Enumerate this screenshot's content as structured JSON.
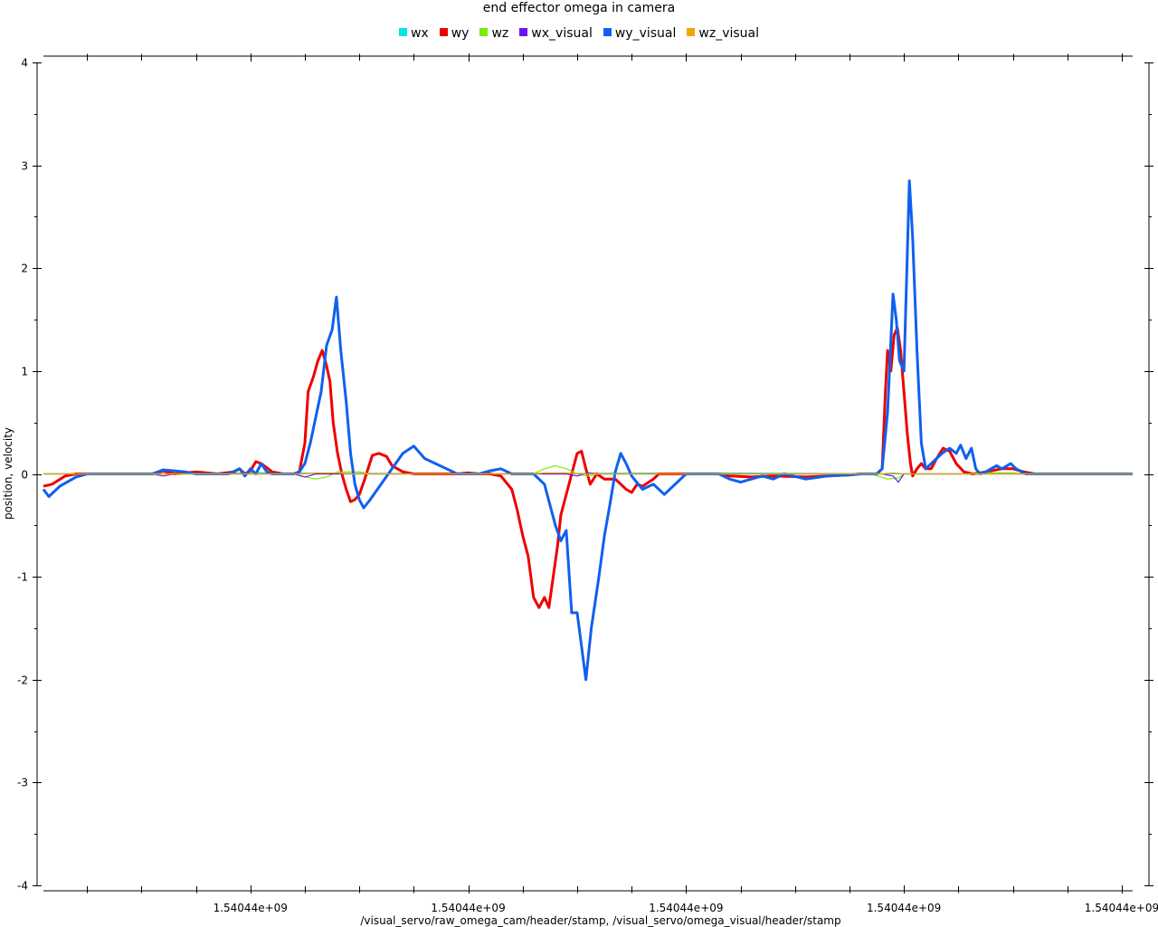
{
  "chart_data": {
    "type": "line",
    "title": "end effector omega in camera",
    "xlabel": "/visual_servo/raw_omega_cam/header/stamp, /visual_servo/omega_visual/header/stamp",
    "ylabel": "position, velocity",
    "ylim": [
      -4,
      4
    ],
    "yticks": [
      -4,
      -3,
      -2,
      -1,
      0,
      1,
      2,
      3,
      4
    ],
    "xlim": [
      0,
      100
    ],
    "xticks": [
      19.0,
      39.0,
      59.0,
      79.0,
      99.0
    ],
    "xtick_labels": [
      "1.54044e+09",
      "1.54044e+09",
      "1.54044e+09",
      "1.54044e+09",
      "1.54044e+09"
    ],
    "legend_position": "top-center",
    "grid": false,
    "series": [
      {
        "name": "wx",
        "color": "#00e5ee",
        "points": [
          [
            0,
            0
          ],
          [
            20,
            0.01
          ],
          [
            40,
            0
          ],
          [
            60,
            0.01
          ],
          [
            80,
            0
          ],
          [
            100,
            0
          ]
        ]
      },
      {
        "name": "wy",
        "color": "#ee0000",
        "points": [
          [
            0,
            -0.12
          ],
          [
            0.8,
            -0.1
          ],
          [
            2,
            -0.02
          ],
          [
            3,
            0
          ],
          [
            10,
            0
          ],
          [
            11,
            0.03
          ],
          [
            12,
            0
          ],
          [
            14,
            0.02
          ],
          [
            16,
            0
          ],
          [
            17.5,
            0.02
          ],
          [
            18,
            0.05
          ],
          [
            18.5,
            0
          ],
          [
            19,
            0.03
          ],
          [
            19.5,
            0.12
          ],
          [
            20,
            0.1
          ],
          [
            21,
            0.02
          ],
          [
            22,
            0
          ],
          [
            23,
            0
          ],
          [
            23.5,
            0.02
          ],
          [
            24,
            0.3
          ],
          [
            24.3,
            0.8
          ],
          [
            24.8,
            0.95
          ],
          [
            25.2,
            1.1
          ],
          [
            25.6,
            1.2
          ],
          [
            26,
            1.05
          ],
          [
            26.3,
            0.9
          ],
          [
            26.6,
            0.5
          ],
          [
            27,
            0.2
          ],
          [
            27.4,
            0
          ],
          [
            27.8,
            -0.15
          ],
          [
            28.2,
            -0.27
          ],
          [
            28.6,
            -0.25
          ],
          [
            29,
            -0.2
          ],
          [
            29.5,
            -0.05
          ],
          [
            29.8,
            0.05
          ],
          [
            30.2,
            0.18
          ],
          [
            30.8,
            0.2
          ],
          [
            31.5,
            0.17
          ],
          [
            32,
            0.08
          ],
          [
            33,
            0.02
          ],
          [
            34,
            0
          ],
          [
            38,
            0
          ],
          [
            39,
            0.01
          ],
          [
            40,
            0
          ],
          [
            41,
            0
          ],
          [
            42,
            -0.02
          ],
          [
            43,
            -0.15
          ],
          [
            43.5,
            -0.35
          ],
          [
            44,
            -0.6
          ],
          [
            44.5,
            -0.8
          ],
          [
            45,
            -1.2
          ],
          [
            45.5,
            -1.3
          ],
          [
            46,
            -1.2
          ],
          [
            46.4,
            -1.3
          ],
          [
            46.8,
            -1.0
          ],
          [
            47.2,
            -0.7
          ],
          [
            47.5,
            -0.4
          ],
          [
            48,
            -0.2
          ],
          [
            48.5,
            0
          ],
          [
            49,
            0.2
          ],
          [
            49.4,
            0.22
          ],
          [
            49.8,
            0.05
          ],
          [
            50.2,
            -0.1
          ],
          [
            50.8,
            0
          ],
          [
            51.5,
            -0.05
          ],
          [
            52.5,
            -0.05
          ],
          [
            53.5,
            -0.15
          ],
          [
            54,
            -0.18
          ],
          [
            54.5,
            -0.1
          ],
          [
            55,
            -0.12
          ],
          [
            56,
            -0.05
          ],
          [
            56.5,
            0
          ],
          [
            62,
            0
          ],
          [
            63,
            -0.02
          ],
          [
            65,
            -0.03
          ],
          [
            67,
            -0.02
          ],
          [
            70,
            -0.03
          ],
          [
            72,
            -0.02
          ],
          [
            74,
            -0.01
          ],
          [
            75,
            0
          ],
          [
            76.5,
            0
          ],
          [
            77,
            0.05
          ],
          [
            77.3,
            0.8
          ],
          [
            77.5,
            1.2
          ],
          [
            77.8,
            1.0
          ],
          [
            78.1,
            1.35
          ],
          [
            78.4,
            1.42
          ],
          [
            78.7,
            1.2
          ],
          [
            79,
            0.8
          ],
          [
            79.3,
            0.4
          ],
          [
            79.6,
            0.1
          ],
          [
            79.8,
            -0.02
          ],
          [
            80.2,
            0.05
          ],
          [
            80.6,
            0.1
          ],
          [
            81,
            0.05
          ],
          [
            81.5,
            0.05
          ],
          [
            82,
            0.15
          ],
          [
            82.6,
            0.25
          ],
          [
            83.2,
            0.22
          ],
          [
            83.8,
            0.1
          ],
          [
            84.5,
            0.02
          ],
          [
            85.3,
            0
          ],
          [
            86,
            0.01
          ],
          [
            87,
            0.03
          ],
          [
            88,
            0.05
          ],
          [
            89,
            0.05
          ],
          [
            90,
            0.02
          ],
          [
            91,
            0
          ],
          [
            100,
            0
          ]
        ]
      },
      {
        "name": "wz",
        "color": "#76ee00",
        "points": [
          [
            0,
            0
          ],
          [
            23,
            0
          ],
          [
            24,
            -0.03
          ],
          [
            25,
            -0.05
          ],
          [
            26,
            -0.03
          ],
          [
            27,
            0.02
          ],
          [
            29,
            0.02
          ],
          [
            30,
            0
          ],
          [
            45,
            0
          ],
          [
            46,
            0.05
          ],
          [
            47,
            0.08
          ],
          [
            48,
            0.05
          ],
          [
            49,
            0
          ],
          [
            50,
            -0.02
          ],
          [
            51,
            0
          ],
          [
            76,
            0
          ],
          [
            77.5,
            -0.05
          ],
          [
            78.5,
            -0.04
          ],
          [
            79,
            0
          ],
          [
            85,
            0
          ],
          [
            86,
            0.01
          ],
          [
            89,
            0.01
          ],
          [
            90,
            0
          ],
          [
            100,
            0
          ]
        ]
      },
      {
        "name": "wx_visual",
        "color": "#7010ee",
        "points": [
          [
            0,
            0
          ],
          [
            10,
            0
          ],
          [
            11,
            -0.02
          ],
          [
            12,
            0
          ],
          [
            23,
            0
          ],
          [
            24,
            -0.03
          ],
          [
            25,
            0
          ],
          [
            48,
            0
          ],
          [
            49,
            -0.02
          ],
          [
            50,
            0.01
          ],
          [
            51,
            0
          ],
          [
            77,
            0
          ],
          [
            78,
            -0.02
          ],
          [
            78.5,
            -0.08
          ],
          [
            79,
            0
          ],
          [
            100,
            0
          ]
        ]
      },
      {
        "name": "wy_visual",
        "color": "#1060ee",
        "points": [
          [
            0,
            -0.15
          ],
          [
            0.5,
            -0.22
          ],
          [
            1.5,
            -0.12
          ],
          [
            3,
            -0.03
          ],
          [
            4,
            0
          ],
          [
            10,
            0
          ],
          [
            11,
            0.04
          ],
          [
            12,
            0.03
          ],
          [
            13,
            0.02
          ],
          [
            14,
            0
          ],
          [
            17,
            0
          ],
          [
            18,
            0.05
          ],
          [
            18.5,
            -0.02
          ],
          [
            19,
            0.05
          ],
          [
            19.5,
            0
          ],
          [
            20,
            0.1
          ],
          [
            20.5,
            0.02
          ],
          [
            21,
            0
          ],
          [
            22,
            0
          ],
          [
            23,
            0
          ],
          [
            23.5,
            0.02
          ],
          [
            24,
            0.1
          ],
          [
            24.5,
            0.3
          ],
          [
            25.5,
            0.8
          ],
          [
            26,
            1.25
          ],
          [
            26.5,
            1.4
          ],
          [
            26.9,
            1.72
          ],
          [
            27.3,
            1.2
          ],
          [
            27.8,
            0.7
          ],
          [
            28.2,
            0.2
          ],
          [
            28.6,
            -0.1
          ],
          [
            29,
            -0.25
          ],
          [
            29.4,
            -0.33
          ],
          [
            30,
            -0.25
          ],
          [
            32,
            0.05
          ],
          [
            33,
            0.2
          ],
          [
            34,
            0.27
          ],
          [
            35,
            0.15
          ],
          [
            36,
            0.1
          ],
          [
            37,
            0.05
          ],
          [
            38,
            0
          ],
          [
            40,
            0
          ],
          [
            41,
            0.03
          ],
          [
            42,
            0.05
          ],
          [
            43,
            0
          ],
          [
            44,
            0
          ],
          [
            45,
            0
          ],
          [
            46,
            -0.1
          ],
          [
            47,
            -0.5
          ],
          [
            47.5,
            -0.65
          ],
          [
            48,
            -0.55
          ],
          [
            48.5,
            -1.35
          ],
          [
            49,
            -1.35
          ],
          [
            49.8,
            -2.0
          ],
          [
            50.3,
            -1.5
          ],
          [
            51,
            -1.0
          ],
          [
            51.5,
            -0.6
          ],
          [
            52,
            -0.3
          ],
          [
            52.5,
            0.02
          ],
          [
            53,
            0.2
          ],
          [
            53.5,
            0.1
          ],
          [
            54,
            -0.02
          ],
          [
            55,
            -0.15
          ],
          [
            56,
            -0.1
          ],
          [
            57,
            -0.2
          ],
          [
            58,
            -0.1
          ],
          [
            59,
            0
          ],
          [
            62,
            0
          ],
          [
            63,
            -0.05
          ],
          [
            64,
            -0.08
          ],
          [
            65,
            -0.05
          ],
          [
            66,
            -0.02
          ],
          [
            67,
            -0.05
          ],
          [
            68,
            0
          ],
          [
            70,
            -0.05
          ],
          [
            72,
            -0.02
          ],
          [
            74,
            -0.01
          ],
          [
            75,
            0
          ],
          [
            76.5,
            0
          ],
          [
            77,
            0.05
          ],
          [
            77.5,
            0.6
          ],
          [
            78,
            1.75
          ],
          [
            78.3,
            1.5
          ],
          [
            78.6,
            1.1
          ],
          [
            79,
            1.0
          ],
          [
            79.5,
            2.85
          ],
          [
            79.8,
            2.3
          ],
          [
            80.2,
            1.2
          ],
          [
            80.6,
            0.3
          ],
          [
            81,
            0.05
          ],
          [
            81.5,
            0.1
          ],
          [
            82,
            0.15
          ],
          [
            82.5,
            0.2
          ],
          [
            83.2,
            0.25
          ],
          [
            83.8,
            0.2
          ],
          [
            84.2,
            0.28
          ],
          [
            84.7,
            0.15
          ],
          [
            85.2,
            0.25
          ],
          [
            85.6,
            0.05
          ],
          [
            86,
            0
          ],
          [
            86.5,
            0.02
          ],
          [
            87,
            0.05
          ],
          [
            87.5,
            0.08
          ],
          [
            88,
            0.05
          ],
          [
            88.8,
            0.1
          ],
          [
            89.3,
            0.05
          ],
          [
            89.8,
            0.02
          ],
          [
            90.2,
            0
          ],
          [
            100,
            0
          ]
        ]
      },
      {
        "name": "wz_visual",
        "color": "#eea500",
        "points": [
          [
            0,
            0
          ],
          [
            24,
            0
          ],
          [
            25,
            0.01
          ],
          [
            27,
            0.01
          ],
          [
            28,
            0
          ],
          [
            45,
            0
          ],
          [
            46,
            0.01
          ],
          [
            48,
            0.01
          ],
          [
            49,
            0
          ],
          [
            77,
            0
          ],
          [
            78,
            0.01
          ],
          [
            79,
            0
          ],
          [
            100,
            0
          ]
        ]
      }
    ]
  }
}
